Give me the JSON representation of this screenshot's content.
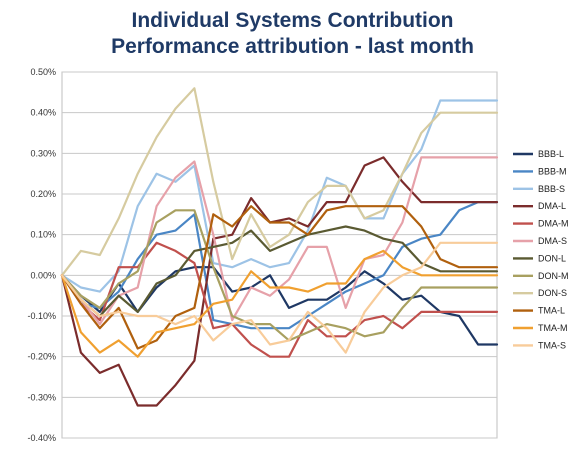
{
  "title_line1": "Individual Systems Contribution",
  "title_line2": "Performance attribution - last month",
  "chart_data": {
    "type": "line",
    "title": "Individual Systems Contribution Performance attribution - last month",
    "xlabel": "",
    "ylabel": "",
    "ylim": [
      -0.4,
      0.5
    ],
    "yticks": [
      -0.4,
      -0.3,
      -0.2,
      -0.1,
      0.0,
      0.1,
      0.2,
      0.3,
      0.4,
      0.5
    ],
    "ytick_labels": [
      "-0.40%",
      "-0.30%",
      "-0.20%",
      "-0.10%",
      "0.00%",
      "0.10%",
      "0.20%",
      "0.30%",
      "0.40%",
      "0.50%"
    ],
    "y_unit": "%",
    "x": [
      1,
      2,
      3,
      4,
      5,
      6,
      7,
      8,
      9,
      10,
      11,
      12,
      13,
      14,
      15,
      16,
      17,
      18,
      19,
      20,
      21,
      22,
      23,
      24
    ],
    "grid": "horizontal",
    "legend_position": "right",
    "series": [
      {
        "name": "BBB-L",
        "color": "#1f3864",
        "values": [
          0.0,
          -0.05,
          -0.09,
          -0.02,
          -0.09,
          -0.03,
          0.01,
          0.02,
          0.02,
          -0.04,
          -0.03,
          0.0,
          -0.08,
          -0.06,
          -0.06,
          -0.03,
          0.01,
          -0.02,
          -0.06,
          -0.05,
          -0.09,
          -0.1,
          -0.17,
          -0.17
        ]
      },
      {
        "name": "BBB-M",
        "color": "#4a86c5",
        "values": [
          0.0,
          -0.07,
          -0.08,
          -0.04,
          0.04,
          0.1,
          0.11,
          0.15,
          -0.11,
          -0.12,
          -0.13,
          -0.13,
          -0.13,
          -0.1,
          -0.07,
          -0.04,
          -0.02,
          0.0,
          0.07,
          0.09,
          0.1,
          0.16,
          0.18,
          0.18
        ]
      },
      {
        "name": "BBB-S",
        "color": "#9dc3e6",
        "values": [
          0.0,
          -0.03,
          -0.04,
          0.01,
          0.17,
          0.25,
          0.23,
          0.27,
          0.03,
          0.02,
          0.04,
          0.02,
          0.03,
          0.11,
          0.24,
          0.22,
          0.14,
          0.14,
          0.25,
          0.31,
          0.43,
          0.43,
          0.43,
          0.43
        ]
      },
      {
        "name": "DMA-L",
        "color": "#7b2c2c",
        "values": [
          0.0,
          -0.19,
          -0.24,
          -0.22,
          -0.32,
          -0.32,
          -0.27,
          -0.21,
          0.09,
          0.1,
          0.19,
          0.13,
          0.14,
          0.12,
          0.18,
          0.18,
          0.27,
          0.29,
          0.23,
          0.18,
          0.18,
          0.18,
          0.18,
          0.18
        ]
      },
      {
        "name": "DMA-M",
        "color": "#c0504d",
        "values": [
          0.0,
          -0.07,
          -0.11,
          0.02,
          0.02,
          0.08,
          0.06,
          0.03,
          -0.13,
          -0.12,
          -0.17,
          -0.2,
          -0.2,
          -0.11,
          -0.15,
          -0.15,
          -0.11,
          -0.1,
          -0.13,
          -0.09,
          -0.09,
          -0.09,
          -0.09,
          -0.09
        ]
      },
      {
        "name": "DMA-S",
        "color": "#e6a1a9",
        "values": [
          0.0,
          -0.06,
          -0.12,
          -0.05,
          -0.03,
          0.17,
          0.24,
          0.28,
          0.1,
          -0.11,
          -0.03,
          -0.05,
          -0.01,
          0.07,
          0.07,
          -0.08,
          0.04,
          0.05,
          0.13,
          0.29,
          0.29,
          0.29,
          0.29,
          0.29
        ]
      },
      {
        "name": "DON-L",
        "color": "#5a5a32",
        "values": [
          0.0,
          -0.06,
          -0.1,
          -0.05,
          -0.09,
          -0.02,
          0.0,
          0.06,
          0.07,
          0.08,
          0.11,
          0.06,
          0.08,
          0.1,
          0.11,
          0.12,
          0.11,
          0.09,
          0.08,
          0.03,
          0.01,
          0.01,
          0.01,
          0.01
        ]
      },
      {
        "name": "DON-M",
        "color": "#a8a060",
        "values": [
          0.0,
          -0.05,
          -0.08,
          -0.02,
          0.01,
          0.13,
          0.16,
          0.16,
          0.02,
          -0.1,
          -0.12,
          -0.12,
          -0.16,
          -0.14,
          -0.12,
          -0.13,
          -0.15,
          -0.14,
          -0.08,
          -0.03,
          -0.03,
          -0.03,
          -0.03,
          -0.03
        ]
      },
      {
        "name": "DON-S",
        "color": "#d6cba0",
        "values": [
          0.0,
          0.06,
          0.05,
          0.14,
          0.25,
          0.34,
          0.41,
          0.46,
          0.23,
          0.04,
          0.15,
          0.07,
          0.1,
          0.18,
          0.22,
          0.22,
          0.14,
          0.16,
          0.25,
          0.35,
          0.4,
          0.4,
          0.4,
          0.4
        ]
      },
      {
        "name": "TMA-L",
        "color": "#b0600e",
        "values": [
          0.0,
          -0.07,
          -0.13,
          -0.08,
          -0.18,
          -0.16,
          -0.1,
          -0.08,
          0.15,
          0.12,
          0.17,
          0.13,
          0.13,
          0.1,
          0.16,
          0.17,
          0.17,
          0.17,
          0.17,
          0.12,
          0.04,
          0.02,
          0.02,
          0.02
        ]
      },
      {
        "name": "TMA-M",
        "color": "#f0a030",
        "values": [
          0.0,
          -0.14,
          -0.19,
          -0.16,
          -0.2,
          -0.14,
          -0.13,
          -0.12,
          -0.07,
          -0.06,
          0.01,
          -0.03,
          -0.03,
          -0.04,
          -0.02,
          -0.02,
          0.04,
          0.06,
          0.02,
          0.0,
          0.0,
          0.0,
          0.0,
          0.0
        ]
      },
      {
        "name": "TMA-S",
        "color": "#f8cc9a",
        "values": [
          0.0,
          -0.06,
          -0.1,
          -0.09,
          -0.1,
          -0.1,
          -0.12,
          -0.1,
          -0.16,
          -0.12,
          -0.11,
          -0.17,
          -0.16,
          -0.09,
          -0.13,
          -0.19,
          -0.09,
          -0.03,
          0.0,
          0.02,
          0.08,
          0.08,
          0.08,
          0.08
        ]
      }
    ]
  }
}
